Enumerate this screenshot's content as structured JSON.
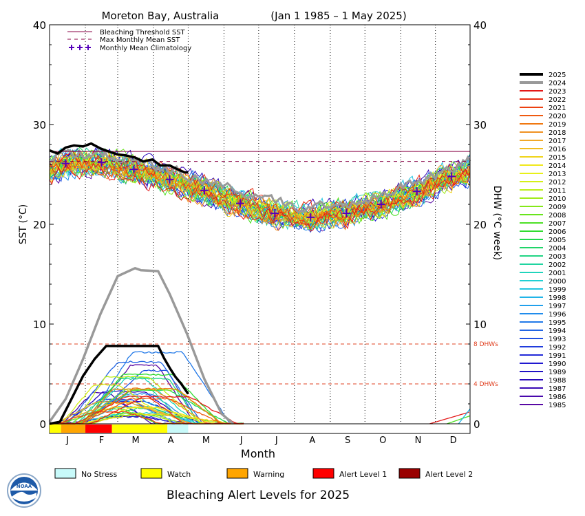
{
  "chart_data": {
    "type": "line",
    "title": "Moreton Bay, Australia",
    "subtitle": "(Jan 1 1985 – 1 May 2025)",
    "xlabel": "Month",
    "ylabel_left": "SST (°C)",
    "ylabel_right": "DHW (°C week)",
    "ylim": [
      0,
      40
    ],
    "y_ticks": [
      0,
      10,
      20,
      30,
      40
    ],
    "x_ticks": [
      "J",
      "F",
      "M",
      "A",
      "M",
      "J",
      "J",
      "A",
      "S",
      "O",
      "N",
      "D"
    ],
    "x_range_days": [
      1,
      365
    ],
    "thresholds": {
      "bleaching_threshold_sst": 27.3,
      "max_monthly_mean_sst": 26.3,
      "dhw_levels": [
        {
          "value": 8,
          "label": "8 DHWs"
        },
        {
          "value": 4,
          "label": "4 DHWs"
        }
      ]
    },
    "legend_top": [
      {
        "label": "Bleaching Threshold SST",
        "style": "solid",
        "color": "#880044"
      },
      {
        "label": "Max Monthly Mean SST",
        "style": "dashed",
        "color": "#880044"
      },
      {
        "label": "Monthly Mean Climatology",
        "style": "crosses",
        "color": "#5500bb"
      }
    ],
    "climatology": {
      "days": [
        15,
        46,
        74,
        105,
        135,
        166,
        196,
        227,
        258,
        288,
        319,
        349
      ],
      "values": [
        26.1,
        26.2,
        25.5,
        24.5,
        23.4,
        22.1,
        21.1,
        20.7,
        21.1,
        22.0,
        23.3,
        24.8
      ]
    },
    "years": [
      "2025",
      "2024",
      "2023",
      "2022",
      "2021",
      "2020",
      "2019",
      "2018",
      "2017",
      "2016",
      "2015",
      "2014",
      "2013",
      "2012",
      "2011",
      "2010",
      "2009",
      "2008",
      "2007",
      "2006",
      "2005",
      "2004",
      "2003",
      "2002",
      "2001",
      "2000",
      "1999",
      "1998",
      "1997",
      "1996",
      "1995",
      "1994",
      "1993",
      "1992",
      "1991",
      "1990",
      "1989",
      "1988",
      "1987",
      "1986",
      "1985"
    ],
    "year_colors": [
      "#000000",
      "#999999",
      "#e41818",
      "#e82a10",
      "#ec4010",
      "#ef5a10",
      "#f07810",
      "#f09020",
      "#f0a828",
      "#f0be20",
      "#f0d418",
      "#f0e818",
      "#e8f018",
      "#d4f018",
      "#bcf018",
      "#a0ec18",
      "#84e818",
      "#68e41c",
      "#4ce024",
      "#30dc30",
      "#20d84c",
      "#20d468",
      "#20d484",
      "#20d4a0",
      "#20d4bc",
      "#20d0d4",
      "#20c4e0",
      "#20b4e8",
      "#20a0ec",
      "#208cec",
      "#2078e8",
      "#2064e4",
      "#2050e0",
      "#203cdc",
      "#2028d8",
      "#2018d0",
      "#2010c4",
      "#2808bc",
      "#3808b4",
      "#4808ac",
      "#5808a4"
    ],
    "sst_2025": {
      "days": [
        1,
        8,
        15,
        22,
        30,
        37,
        45,
        52,
        60,
        67,
        75,
        82,
        90,
        97,
        105,
        112,
        118,
        121
      ],
      "values": [
        27.4,
        27.1,
        27.7,
        27.9,
        27.8,
        28.1,
        27.6,
        27.3,
        27.0,
        26.9,
        26.7,
        26.3,
        26.5,
        25.9,
        25.9,
        25.5,
        25.2,
        25.2
      ]
    },
    "dhw_2025": {
      "days": [
        1,
        10,
        20,
        30,
        40,
        50,
        60,
        70,
        80,
        90,
        95,
        100,
        105,
        110,
        115,
        121
      ],
      "values": [
        0,
        0.2,
        2.5,
        4.8,
        6.5,
        7.8,
        7.8,
        7.8,
        7.8,
        7.8,
        7.8,
        6.6,
        5.6,
        4.7,
        4.0,
        3.0
      ]
    },
    "dhw_2024": {
      "days": [
        1,
        15,
        30,
        45,
        60,
        75,
        80,
        95,
        105,
        120,
        135,
        150,
        160
      ],
      "values": [
        0.2,
        2.5,
        6.5,
        11.0,
        14.8,
        15.6,
        15.4,
        15.3,
        13.0,
        9.0,
        4.5,
        1.0,
        0
      ]
    },
    "alert_bar_2025": [
      {
        "from_day": 1,
        "to_day": 11,
        "level": "watch"
      },
      {
        "from_day": 11,
        "to_day": 32,
        "level": "warning"
      },
      {
        "from_day": 32,
        "to_day": 55,
        "level": "alert1"
      },
      {
        "from_day": 55,
        "to_day": 103,
        "level": "watch"
      },
      {
        "from_day": 103,
        "to_day": 121,
        "level": "nostress"
      }
    ]
  },
  "alert_legend": [
    {
      "key": "nostress",
      "label": "No Stress",
      "color": "#c8fafa"
    },
    {
      "key": "watch",
      "label": "Watch",
      "color": "#ffff00"
    },
    {
      "key": "warning",
      "label": "Warning",
      "color": "#ffa500"
    },
    {
      "key": "alert1",
      "label": "Alert Level 1",
      "color": "#ff0000"
    },
    {
      "key": "alert2",
      "label": "Alert Level 2",
      "color": "#990000"
    }
  ],
  "footer": {
    "title": "Bleaching Alert Levels for 2025",
    "logo_text": "NOAA"
  }
}
